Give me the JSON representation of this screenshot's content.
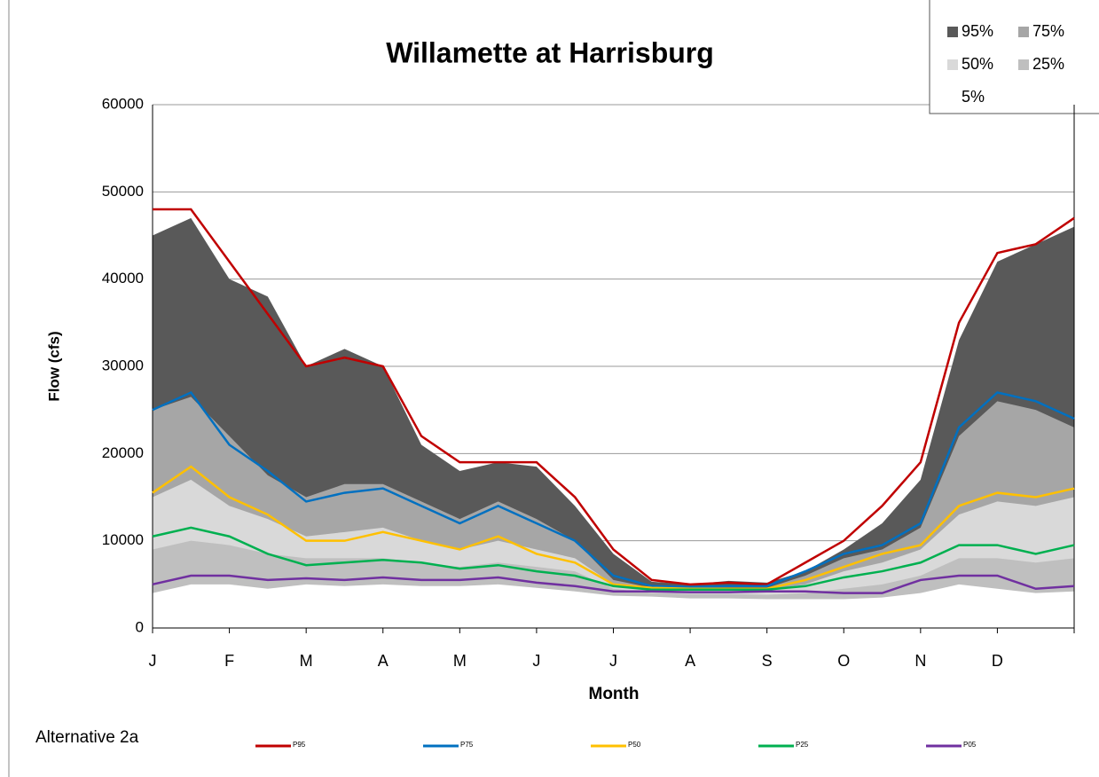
{
  "chart_data": {
    "type": "line",
    "title": "Willamette at Harrisburg",
    "subtitle": "Alternative 2a",
    "xlabel": "Month",
    "ylabel": "Flow (cfs)",
    "categories": [
      "J",
      null,
      "F",
      null,
      "M",
      null,
      "A",
      null,
      "M",
      null,
      "J",
      null,
      "J",
      null,
      "A",
      null,
      "S",
      null,
      "O",
      null,
      "N",
      null,
      "D",
      null,
      null
    ],
    "ylim": [
      0,
      60000
    ],
    "yticks": [
      0,
      10000,
      20000,
      30000,
      40000,
      50000,
      60000
    ],
    "grid": true,
    "series": [
      {
        "name": "95%",
        "type": "area",
        "color": "#595959",
        "values": [
          45000,
          47000,
          40000,
          38000,
          30000,
          32000,
          30000,
          21000,
          18000,
          19000,
          18500,
          14000,
          8500,
          5300,
          5000,
          5400,
          5200,
          6500,
          9000,
          12000,
          17000,
          33000,
          42000,
          44000,
          46000
        ]
      },
      {
        "name": "75%",
        "type": "area",
        "color": "#a6a6a6",
        "values": [
          25000,
          26500,
          22000,
          17500,
          15000,
          16500,
          16500,
          14500,
          12500,
          14500,
          12500,
          10000,
          5500,
          4600,
          4500,
          4600,
          4600,
          6000,
          8000,
          9000,
          11500,
          22000,
          26000,
          25000,
          23000
        ]
      },
      {
        "name": "50%",
        "type": "area",
        "color": "#d9d9d9",
        "values": [
          15000,
          17000,
          14000,
          12500,
          10500,
          11000,
          11500,
          10000,
          9000,
          10000,
          9000,
          8000,
          5000,
          4500,
          4400,
          4400,
          4400,
          5000,
          6500,
          7500,
          9000,
          13000,
          14500,
          14000,
          15000
        ]
      },
      {
        "name": "25%",
        "type": "area",
        "color": "#bfbfbf",
        "values": [
          9000,
          10000,
          9500,
          8500,
          8000,
          8000,
          8000,
          7500,
          7000,
          7500,
          7000,
          6500,
          4500,
          4000,
          3900,
          3900,
          3800,
          4000,
          4500,
          5000,
          6000,
          8000,
          8000,
          7500,
          8000
        ]
      },
      {
        "name": "5%",
        "type": "area",
        "color": "#ffffff",
        "values": [
          4000,
          5000,
          5000,
          4500,
          5000,
          4800,
          5000,
          4800,
          4800,
          5000,
          4600,
          4200,
          3700,
          3600,
          3400,
          3400,
          3300,
          3300,
          3300,
          3500,
          4000,
          5000,
          4500,
          4000,
          4200
        ]
      },
      {
        "name": "P95",
        "type": "line",
        "color": "#c00000",
        "values": [
          48000,
          48000,
          42000,
          36000,
          30000,
          31000,
          30000,
          22000,
          19000,
          19000,
          19000,
          15000,
          9000,
          5500,
          5000,
          5200,
          5000,
          7500,
          10000,
          14000,
          19000,
          35000,
          43000,
          44000,
          47000
        ]
      },
      {
        "name": "P75",
        "type": "line",
        "color": "#0070c0",
        "values": [
          25000,
          27000,
          21000,
          18000,
          14500,
          15500,
          16000,
          14000,
          12000,
          14000,
          12000,
          10000,
          6000,
          4800,
          4700,
          4800,
          4800,
          6500,
          8500,
          9500,
          12000,
          23000,
          27000,
          26000,
          24000
        ]
      },
      {
        "name": "P50",
        "type": "line",
        "color": "#ffc000",
        "values": [
          15500,
          18500,
          15000,
          13000,
          10000,
          10000,
          11000,
          10000,
          9000,
          10500,
          8500,
          7500,
          5000,
          4600,
          4500,
          4500,
          4500,
          5500,
          7000,
          8500,
          9500,
          14000,
          15500,
          15000,
          16000
        ]
      },
      {
        "name": "P25",
        "type": "line",
        "color": "#00b050",
        "values": [
          10500,
          11500,
          10500,
          8500,
          7200,
          7500,
          7800,
          7500,
          6800,
          7200,
          6500,
          6000,
          4800,
          4400,
          4400,
          4400,
          4400,
          4800,
          5800,
          6500,
          7500,
          9500,
          9500,
          8500,
          9500
        ]
      },
      {
        "name": "P05",
        "type": "line",
        "color": "#7030a0",
        "values": [
          5000,
          6000,
          6000,
          5500,
          5700,
          5500,
          5800,
          5500,
          5500,
          5800,
          5200,
          4800,
          4200,
          4200,
          4100,
          4100,
          4200,
          4200,
          4000,
          4000,
          5500,
          6000,
          6000,
          4500,
          4800
        ]
      }
    ]
  }
}
